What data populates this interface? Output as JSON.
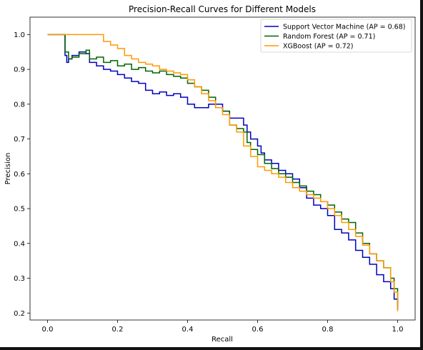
{
  "chart_data": {
    "type": "line",
    "title": "Precision-Recall Curves for Different Models",
    "xlabel": "Recall",
    "ylabel": "Precision",
    "xlim": [
      -0.05,
      1.05
    ],
    "ylim": [
      0.18,
      1.05
    ],
    "xticks": [
      0.0,
      0.2,
      0.4,
      0.6,
      0.8,
      1.0
    ],
    "xtick_labels": [
      "0.0",
      "0.2",
      "0.4",
      "0.6",
      "0.8",
      "1.0"
    ],
    "yticks": [
      0.2,
      0.3,
      0.4,
      0.5,
      0.6,
      0.7,
      0.8,
      0.9,
      1.0
    ],
    "ytick_labels": [
      "0.2",
      "0.3",
      "0.4",
      "0.5",
      "0.6",
      "0.7",
      "0.8",
      "0.9",
      "1.0"
    ],
    "grid": false,
    "legend_position": "top-right",
    "series": [
      {
        "name": "Support Vector Machine (AP = 0.68)",
        "color": "#0000bf",
        "points": [
          [
            0.0,
            1.0
          ],
          [
            0.05,
            1.0
          ],
          [
            0.05,
            0.94
          ],
          [
            0.055,
            0.92
          ],
          [
            0.06,
            0.93
          ],
          [
            0.07,
            0.94
          ],
          [
            0.09,
            0.95
          ],
          [
            0.11,
            0.945
          ],
          [
            0.12,
            0.92
          ],
          [
            0.14,
            0.91
          ],
          [
            0.16,
            0.9
          ],
          [
            0.18,
            0.895
          ],
          [
            0.2,
            0.885
          ],
          [
            0.22,
            0.875
          ],
          [
            0.24,
            0.865
          ],
          [
            0.26,
            0.86
          ],
          [
            0.28,
            0.84
          ],
          [
            0.3,
            0.83
          ],
          [
            0.32,
            0.835
          ],
          [
            0.34,
            0.825
          ],
          [
            0.36,
            0.83
          ],
          [
            0.38,
            0.82
          ],
          [
            0.4,
            0.8
          ],
          [
            0.42,
            0.79
          ],
          [
            0.44,
            0.79
          ],
          [
            0.46,
            0.8
          ],
          [
            0.48,
            0.8
          ],
          [
            0.5,
            0.78
          ],
          [
            0.52,
            0.76
          ],
          [
            0.54,
            0.76
          ],
          [
            0.56,
            0.74
          ],
          [
            0.57,
            0.72
          ],
          [
            0.58,
            0.7
          ],
          [
            0.6,
            0.68
          ],
          [
            0.61,
            0.66
          ],
          [
            0.62,
            0.64
          ],
          [
            0.64,
            0.63
          ],
          [
            0.66,
            0.61
          ],
          [
            0.68,
            0.6
          ],
          [
            0.7,
            0.585
          ],
          [
            0.72,
            0.56
          ],
          [
            0.74,
            0.53
          ],
          [
            0.76,
            0.51
          ],
          [
            0.78,
            0.5
          ],
          [
            0.8,
            0.48
          ],
          [
            0.82,
            0.44
          ],
          [
            0.84,
            0.43
          ],
          [
            0.86,
            0.41
          ],
          [
            0.88,
            0.38
          ],
          [
            0.9,
            0.36
          ],
          [
            0.92,
            0.34
          ],
          [
            0.94,
            0.31
          ],
          [
            0.96,
            0.29
          ],
          [
            0.98,
            0.27
          ],
          [
            0.99,
            0.24
          ],
          [
            1.0,
            0.21
          ]
        ]
      },
      {
        "name": "Random Forest (AP = 0.71)",
        "color": "#006400",
        "points": [
          [
            0.0,
            1.0
          ],
          [
            0.05,
            1.0
          ],
          [
            0.05,
            0.95
          ],
          [
            0.06,
            0.95
          ],
          [
            0.06,
            0.93
          ],
          [
            0.07,
            0.935
          ],
          [
            0.09,
            0.945
          ],
          [
            0.11,
            0.955
          ],
          [
            0.12,
            0.93
          ],
          [
            0.14,
            0.935
          ],
          [
            0.16,
            0.92
          ],
          [
            0.18,
            0.925
          ],
          [
            0.2,
            0.91
          ],
          [
            0.22,
            0.915
          ],
          [
            0.24,
            0.9
          ],
          [
            0.26,
            0.905
          ],
          [
            0.28,
            0.895
          ],
          [
            0.3,
            0.89
          ],
          [
            0.32,
            0.895
          ],
          [
            0.34,
            0.885
          ],
          [
            0.36,
            0.88
          ],
          [
            0.38,
            0.875
          ],
          [
            0.4,
            0.86
          ],
          [
            0.42,
            0.85
          ],
          [
            0.44,
            0.84
          ],
          [
            0.46,
            0.82
          ],
          [
            0.48,
            0.79
          ],
          [
            0.5,
            0.78
          ],
          [
            0.52,
            0.74
          ],
          [
            0.54,
            0.73
          ],
          [
            0.56,
            0.72
          ],
          [
            0.57,
            0.69
          ],
          [
            0.58,
            0.67
          ],
          [
            0.6,
            0.655
          ],
          [
            0.62,
            0.63
          ],
          [
            0.64,
            0.615
          ],
          [
            0.66,
            0.6
          ],
          [
            0.68,
            0.59
          ],
          [
            0.7,
            0.575
          ],
          [
            0.72,
            0.565
          ],
          [
            0.74,
            0.55
          ],
          [
            0.76,
            0.54
          ],
          [
            0.78,
            0.52
          ],
          [
            0.8,
            0.51
          ],
          [
            0.82,
            0.49
          ],
          [
            0.84,
            0.47
          ],
          [
            0.86,
            0.46
          ],
          [
            0.88,
            0.43
          ],
          [
            0.9,
            0.4
          ],
          [
            0.92,
            0.37
          ],
          [
            0.94,
            0.35
          ],
          [
            0.96,
            0.33
          ],
          [
            0.98,
            0.3
          ],
          [
            0.99,
            0.27
          ],
          [
            1.0,
            0.22
          ]
        ]
      },
      {
        "name": "XGBoost (AP = 0.72)",
        "color": "#ff9900",
        "points": [
          [
            0.0,
            1.0
          ],
          [
            0.16,
            1.0
          ],
          [
            0.16,
            0.98
          ],
          [
            0.18,
            0.97
          ],
          [
            0.2,
            0.96
          ],
          [
            0.22,
            0.94
          ],
          [
            0.24,
            0.93
          ],
          [
            0.26,
            0.92
          ],
          [
            0.28,
            0.915
          ],
          [
            0.3,
            0.91
          ],
          [
            0.32,
            0.9
          ],
          [
            0.34,
            0.895
          ],
          [
            0.36,
            0.89
          ],
          [
            0.38,
            0.885
          ],
          [
            0.4,
            0.87
          ],
          [
            0.42,
            0.85
          ],
          [
            0.44,
            0.83
          ],
          [
            0.46,
            0.81
          ],
          [
            0.48,
            0.79
          ],
          [
            0.5,
            0.77
          ],
          [
            0.52,
            0.74
          ],
          [
            0.54,
            0.72
          ],
          [
            0.56,
            0.68
          ],
          [
            0.58,
            0.65
          ],
          [
            0.6,
            0.62
          ],
          [
            0.62,
            0.61
          ],
          [
            0.64,
            0.6
          ],
          [
            0.66,
            0.59
          ],
          [
            0.68,
            0.575
          ],
          [
            0.7,
            0.56
          ],
          [
            0.72,
            0.55
          ],
          [
            0.74,
            0.54
          ],
          [
            0.76,
            0.53
          ],
          [
            0.78,
            0.52
          ],
          [
            0.8,
            0.5
          ],
          [
            0.82,
            0.48
          ],
          [
            0.84,
            0.46
          ],
          [
            0.86,
            0.44
          ],
          [
            0.88,
            0.42
          ],
          [
            0.9,
            0.395
          ],
          [
            0.92,
            0.37
          ],
          [
            0.94,
            0.35
          ],
          [
            0.96,
            0.33
          ],
          [
            0.98,
            0.29
          ],
          [
            0.99,
            0.26
          ],
          [
            1.0,
            0.205
          ]
        ]
      }
    ]
  }
}
